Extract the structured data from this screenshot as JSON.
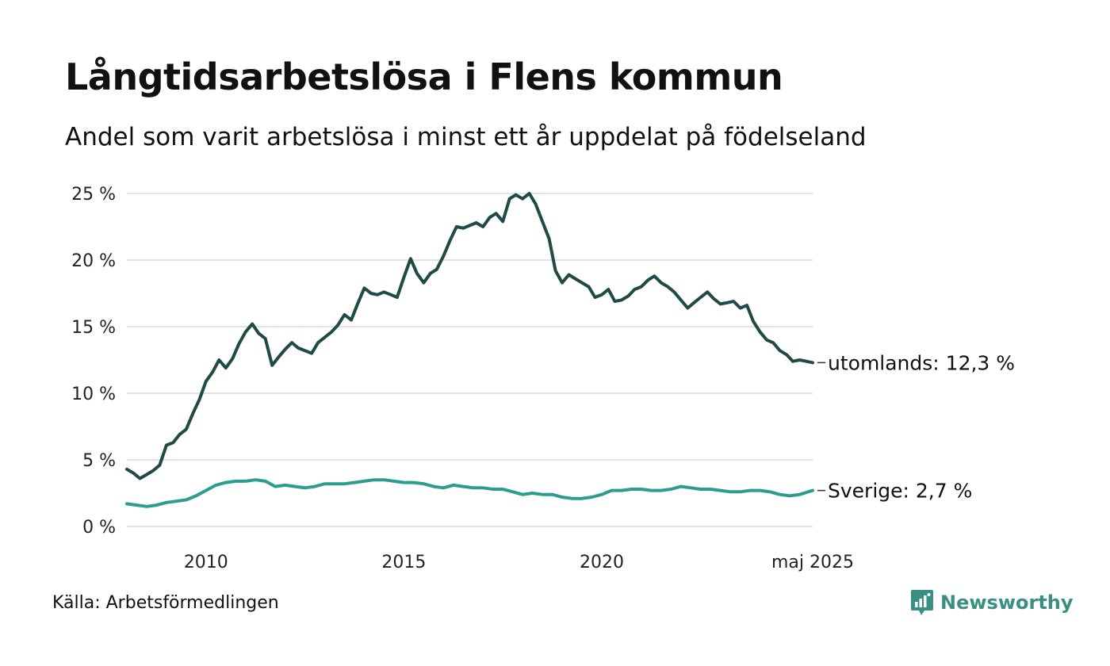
{
  "title": "Långtidsarbetslösa i Flens kommun",
  "subtitle": "Andel som varit arbetslösa i minst ett år uppdelat på födelseland",
  "source": "Källa: Arbetsförmedlingen",
  "brand": "Newsworthy",
  "colors": {
    "utomlands": "#1f4a45",
    "sverige": "#2a9d8f",
    "grid": "#e3e3e3",
    "brand": "#3a8f84"
  },
  "chart_data": {
    "type": "line",
    "title": "Långtidsarbetslösa i Flens kommun",
    "subtitle": "Andel som varit arbetslösa i minst ett år uppdelat på födelseland",
    "xlabel": "",
    "ylabel": "",
    "xlim": [
      2008.0,
      2025.33
    ],
    "ylim": [
      0,
      25
    ],
    "y_ticks": [
      0,
      5,
      10,
      15,
      20,
      25
    ],
    "y_tick_labels": [
      "0 %",
      "5 %",
      "10 %",
      "15 %",
      "20 %",
      "25 %"
    ],
    "x_ticks": [
      2010,
      2015,
      2020,
      2025.33
    ],
    "x_tick_labels": [
      "2010",
      "2015",
      "2020",
      "maj 2025"
    ],
    "grid": true,
    "legend": "end-labels",
    "series": [
      {
        "name": "utomlands",
        "end_label": "utomlands: 12,3 %",
        "color": "#1f4a45",
        "x": [
          2008.0,
          2008.17,
          2008.33,
          2008.5,
          2008.67,
          2008.83,
          2009.0,
          2009.17,
          2009.33,
          2009.5,
          2009.67,
          2009.83,
          2010.0,
          2010.17,
          2010.33,
          2010.5,
          2010.67,
          2010.83,
          2011.0,
          2011.17,
          2011.33,
          2011.5,
          2011.67,
          2011.83,
          2012.0,
          2012.17,
          2012.33,
          2012.5,
          2012.67,
          2012.83,
          2013.0,
          2013.17,
          2013.33,
          2013.5,
          2013.67,
          2013.83,
          2014.0,
          2014.17,
          2014.33,
          2014.5,
          2014.67,
          2014.83,
          2015.0,
          2015.17,
          2015.33,
          2015.5,
          2015.67,
          2015.83,
          2016.0,
          2016.17,
          2016.33,
          2016.5,
          2016.67,
          2016.83,
          2017.0,
          2017.17,
          2017.33,
          2017.5,
          2017.67,
          2017.83,
          2018.0,
          2018.17,
          2018.33,
          2018.5,
          2018.67,
          2018.83,
          2019.0,
          2019.17,
          2019.33,
          2019.5,
          2019.67,
          2019.83,
          2020.0,
          2020.17,
          2020.33,
          2020.5,
          2020.67,
          2020.83,
          2021.0,
          2021.17,
          2021.33,
          2021.5,
          2021.67,
          2021.83,
          2022.0,
          2022.17,
          2022.33,
          2022.5,
          2022.67,
          2022.83,
          2023.0,
          2023.17,
          2023.33,
          2023.5,
          2023.67,
          2023.83,
          2024.0,
          2024.17,
          2024.33,
          2024.5,
          2024.67,
          2024.83,
          2025.0,
          2025.17,
          2025.33
        ],
        "values": [
          4.3,
          4.0,
          3.6,
          3.9,
          4.2,
          4.6,
          6.1,
          6.3,
          6.9,
          7.3,
          8.5,
          9.5,
          10.9,
          11.6,
          12.5,
          11.9,
          12.6,
          13.7,
          14.6,
          15.2,
          14.5,
          14.1,
          12.1,
          12.7,
          13.3,
          13.8,
          13.4,
          13.2,
          13.0,
          13.8,
          14.2,
          14.6,
          15.1,
          15.9,
          15.5,
          16.7,
          17.9,
          17.5,
          17.4,
          17.6,
          17.4,
          17.2,
          18.7,
          20.1,
          19.0,
          18.3,
          19.0,
          19.3,
          20.3,
          21.5,
          22.5,
          22.4,
          22.6,
          22.8,
          22.5,
          23.2,
          23.5,
          22.9,
          24.6,
          24.9,
          24.6,
          25.0,
          24.2,
          22.9,
          21.6,
          19.2,
          18.3,
          18.9,
          18.6,
          18.3,
          18.0,
          17.2,
          17.4,
          17.8,
          16.9,
          17.0,
          17.3,
          17.8,
          18.0,
          18.5,
          18.8,
          18.3,
          18.0,
          17.6,
          17.0,
          16.4,
          16.8,
          17.2,
          17.6,
          17.1,
          16.7,
          16.8,
          16.9,
          16.4,
          16.6,
          15.4,
          14.6,
          14.0,
          13.8,
          13.2,
          12.9,
          12.4,
          12.5,
          12.4,
          12.3
        ]
      },
      {
        "name": "Sverige",
        "end_label": "Sverige:  2,7 %",
        "color": "#2a9d8f",
        "x": [
          2008.0,
          2008.25,
          2008.5,
          2008.75,
          2009.0,
          2009.25,
          2009.5,
          2009.75,
          2010.0,
          2010.25,
          2010.5,
          2010.75,
          2011.0,
          2011.25,
          2011.5,
          2011.75,
          2012.0,
          2012.25,
          2012.5,
          2012.75,
          2013.0,
          2013.25,
          2013.5,
          2013.75,
          2014.0,
          2014.25,
          2014.5,
          2014.75,
          2015.0,
          2015.25,
          2015.5,
          2015.75,
          2016.0,
          2016.25,
          2016.5,
          2016.75,
          2017.0,
          2017.25,
          2017.5,
          2017.75,
          2018.0,
          2018.25,
          2018.5,
          2018.75,
          2019.0,
          2019.25,
          2019.5,
          2019.75,
          2020.0,
          2020.25,
          2020.5,
          2020.75,
          2021.0,
          2021.25,
          2021.5,
          2021.75,
          2022.0,
          2022.25,
          2022.5,
          2022.75,
          2023.0,
          2023.25,
          2023.5,
          2023.75,
          2024.0,
          2024.25,
          2024.5,
          2024.75,
          2025.0,
          2025.33
        ],
        "values": [
          1.7,
          1.6,
          1.5,
          1.6,
          1.8,
          1.9,
          2.0,
          2.3,
          2.7,
          3.1,
          3.3,
          3.4,
          3.4,
          3.5,
          3.4,
          3.0,
          3.1,
          3.0,
          2.9,
          3.0,
          3.2,
          3.2,
          3.2,
          3.3,
          3.4,
          3.5,
          3.5,
          3.4,
          3.3,
          3.3,
          3.2,
          3.0,
          2.9,
          3.1,
          3.0,
          2.9,
          2.9,
          2.8,
          2.8,
          2.6,
          2.4,
          2.5,
          2.4,
          2.4,
          2.2,
          2.1,
          2.1,
          2.2,
          2.4,
          2.7,
          2.7,
          2.8,
          2.8,
          2.7,
          2.7,
          2.8,
          3.0,
          2.9,
          2.8,
          2.8,
          2.7,
          2.6,
          2.6,
          2.7,
          2.7,
          2.6,
          2.4,
          2.3,
          2.4,
          2.7
        ]
      }
    ]
  }
}
